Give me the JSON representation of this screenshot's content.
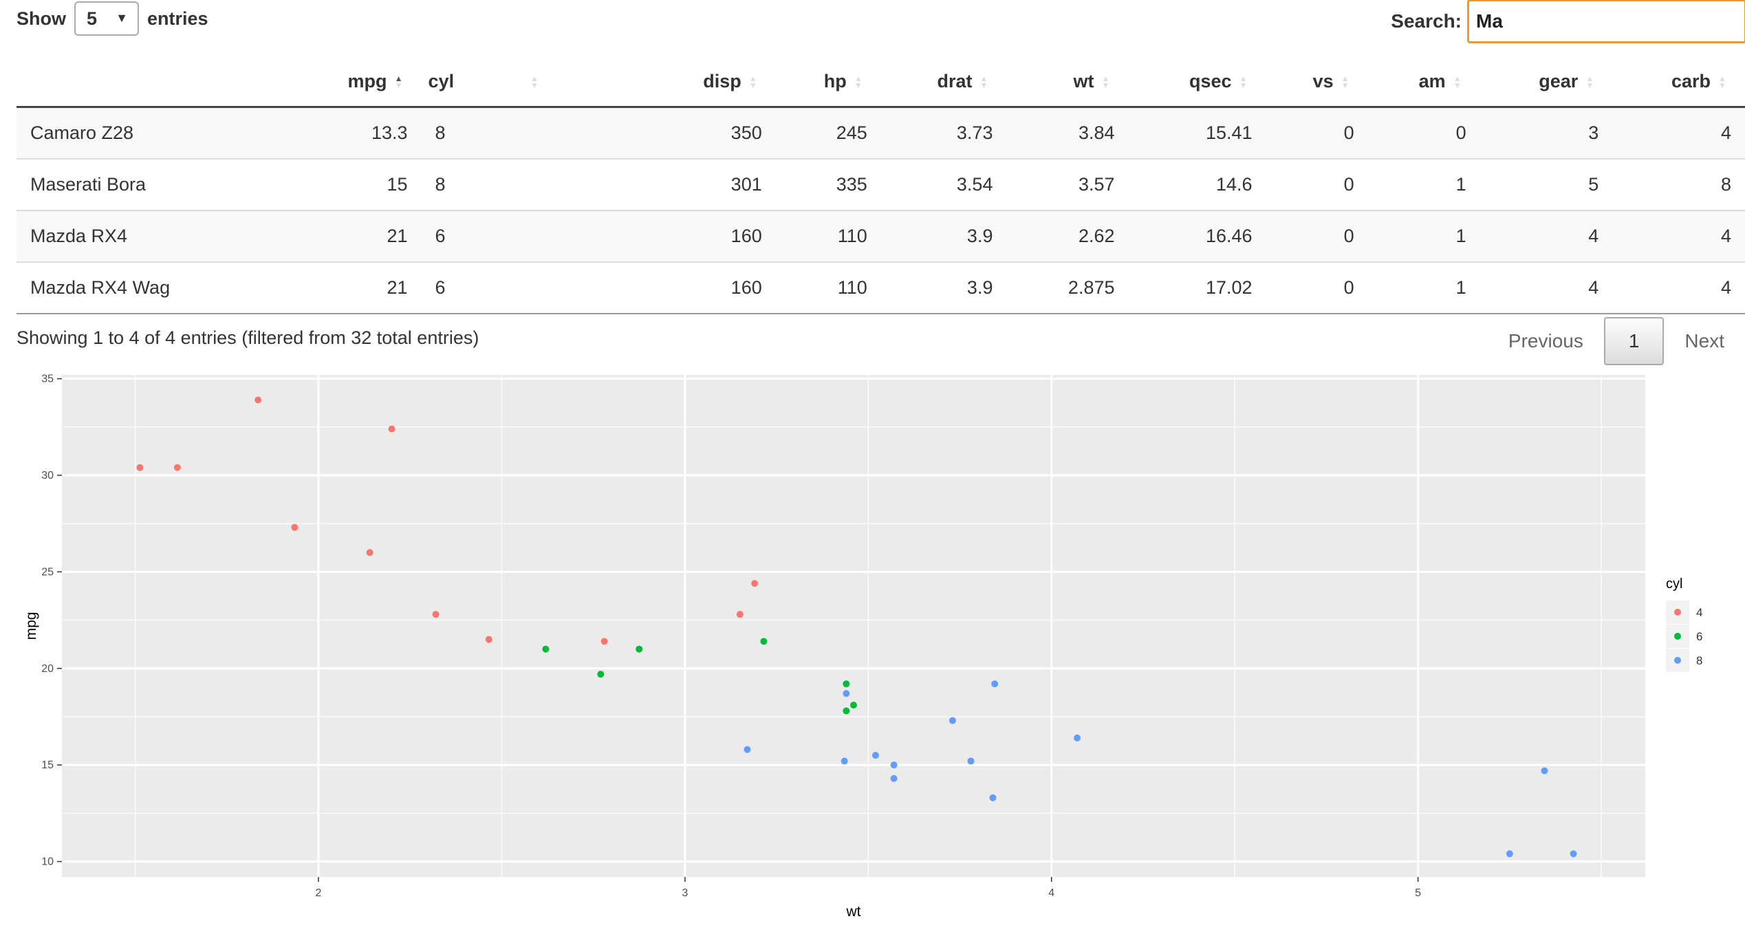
{
  "length_menu": {
    "prefix": "Show",
    "selected": "5",
    "suffix": "entries"
  },
  "search": {
    "label": "Search:",
    "value": "Ma"
  },
  "table": {
    "headers": [
      "",
      "mpg",
      "cyl",
      "disp",
      "hp",
      "drat",
      "wt",
      "qsec",
      "vs",
      "am",
      "gear",
      "carb"
    ],
    "rows": [
      [
        "Camaro Z28",
        "13.3",
        "8",
        "350",
        "245",
        "3.73",
        "3.84",
        "15.41",
        "0",
        "0",
        "3",
        "4"
      ],
      [
        "Maserati Bora",
        "15",
        "8",
        "301",
        "335",
        "3.54",
        "3.57",
        "14.6",
        "0",
        "1",
        "5",
        "8"
      ],
      [
        "Mazda RX4",
        "21",
        "6",
        "160",
        "110",
        "3.9",
        "2.62",
        "16.46",
        "0",
        "1",
        "4",
        "4"
      ],
      [
        "Mazda RX4 Wag",
        "21",
        "6",
        "160",
        "110",
        "3.9",
        "2.875",
        "17.02",
        "0",
        "1",
        "4",
        "4"
      ]
    ]
  },
  "info": "Showing 1 to 4 of 4 entries (filtered from 32 total entries)",
  "pagination": {
    "previous": "Previous",
    "current": "1",
    "next": "Next"
  },
  "colors": {
    "cyl4": "#F8766D",
    "cyl6": "#00BA38",
    "cyl8": "#619CFF",
    "panel": "#EBEBEB",
    "search_border": "#E59D32"
  },
  "chart_data": {
    "type": "scatter",
    "xlabel": "wt",
    "ylabel": "mpg",
    "xlim": [
      1.3,
      5.62
    ],
    "ylim": [
      9.2,
      35.2
    ],
    "x_ticks": [
      2,
      3,
      4,
      5
    ],
    "y_ticks": [
      10,
      15,
      20,
      25,
      30,
      35
    ],
    "grid": true,
    "legend": {
      "title": "cyl",
      "position": "right",
      "entries": [
        "4",
        "6",
        "8"
      ]
    },
    "series": [
      {
        "name": "4",
        "points": [
          [
            2.32,
            22.8
          ],
          [
            3.19,
            24.4
          ],
          [
            3.15,
            22.8
          ],
          [
            2.2,
            32.4
          ],
          [
            1.615,
            30.4
          ],
          [
            1.835,
            33.9
          ],
          [
            2.465,
            21.5
          ],
          [
            1.935,
            27.3
          ],
          [
            2.14,
            26.0
          ],
          [
            1.513,
            30.4
          ],
          [
            2.78,
            21.4
          ]
        ]
      },
      {
        "name": "6",
        "points": [
          [
            2.62,
            21.0
          ],
          [
            2.875,
            21.0
          ],
          [
            3.215,
            21.4
          ],
          [
            3.46,
            18.1
          ],
          [
            3.44,
            19.2
          ],
          [
            3.44,
            17.8
          ],
          [
            2.77,
            19.7
          ]
        ]
      },
      {
        "name": "8",
        "points": [
          [
            3.44,
            18.7
          ],
          [
            3.57,
            14.3
          ],
          [
            4.07,
            16.4
          ],
          [
            3.73,
            17.3
          ],
          [
            3.78,
            15.2
          ],
          [
            5.25,
            10.4
          ],
          [
            5.424,
            10.4
          ],
          [
            5.345,
            14.7
          ],
          [
            3.52,
            15.5
          ],
          [
            3.435,
            15.2
          ],
          [
            3.84,
            13.3
          ],
          [
            3.845,
            19.2
          ],
          [
            3.17,
            15.8
          ],
          [
            3.57,
            15.0
          ]
        ]
      }
    ]
  }
}
